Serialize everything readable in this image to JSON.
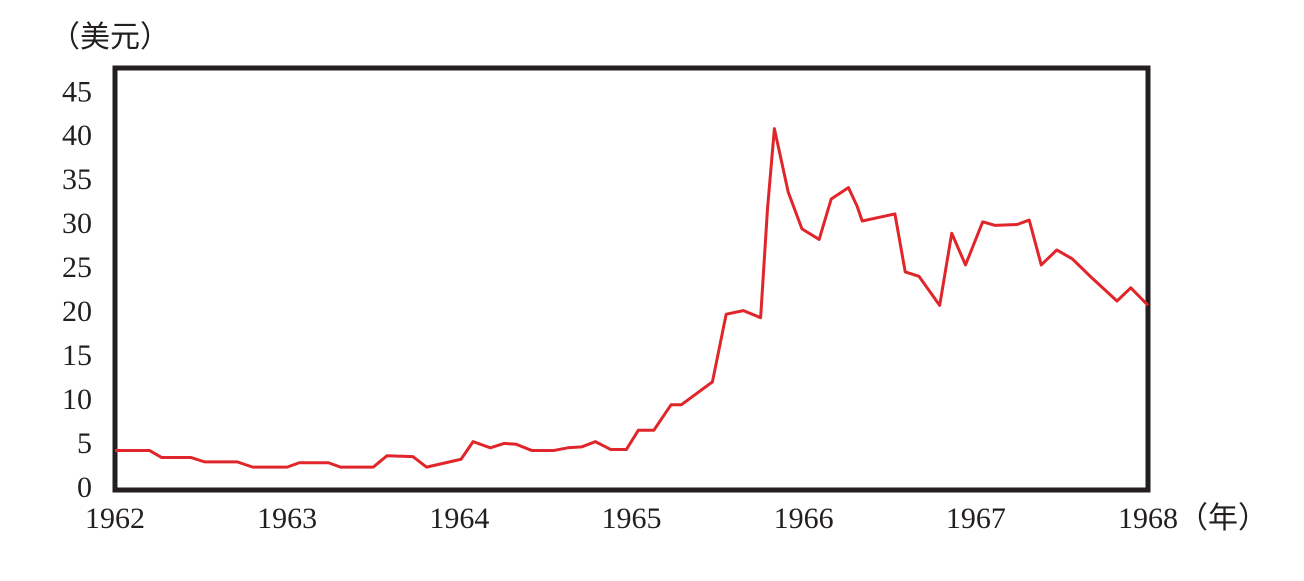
{
  "chart_data": {
    "type": "line",
    "y_label": "（美元）",
    "x_label": "（年）",
    "series": [
      {
        "color": "#e0262a",
        "x": [
          1962.0,
          1962.2,
          1962.27,
          1962.44,
          1962.52,
          1962.71,
          1962.8,
          1963.0,
          1963.07,
          1963.24,
          1963.31,
          1963.5,
          1963.58,
          1963.73,
          1963.81,
          1964.01,
          1964.08,
          1964.18,
          1964.26,
          1964.33,
          1964.42,
          1964.55,
          1964.63,
          1964.71,
          1964.79,
          1964.88,
          1964.97,
          1965.04,
          1965.13,
          1965.23,
          1965.29,
          1965.47,
          1965.55,
          1965.65,
          1965.75,
          1965.79,
          1965.83,
          1965.91,
          1965.99,
          1966.09,
          1966.16,
          1966.26,
          1966.31,
          1966.34,
          1966.53,
          1966.59,
          1966.67,
          1966.79,
          1966.86,
          1966.94,
          1967.04,
          1967.11,
          1967.24,
          1967.31,
          1967.38,
          1967.47,
          1967.56,
          1967.67,
          1967.82,
          1967.9,
          1968.0
        ],
        "values": [
          4.5,
          4.5,
          3.7,
          3.7,
          3.2,
          3.2,
          2.6,
          2.6,
          3.1,
          3.1,
          2.6,
          2.6,
          3.9,
          3.8,
          2.6,
          3.5,
          5.5,
          4.8,
          5.3,
          5.2,
          4.5,
          4.5,
          4.8,
          4.9,
          5.5,
          4.6,
          4.6,
          6.8,
          6.8,
          9.7,
          9.7,
          12.3,
          20.0,
          20.4,
          19.6,
          32.0,
          41.1,
          33.9,
          29.7,
          28.5,
          33.1,
          34.4,
          32.3,
          30.6,
          31.4,
          24.8,
          24.3,
          21.0,
          29.2,
          25.6,
          30.5,
          30.1,
          30.2,
          30.7,
          25.6,
          27.3,
          26.3,
          24.2,
          21.5,
          23.0,
          21.0
        ]
      }
    ],
    "xlim": [
      1962,
      1968
    ],
    "xticks": [
      1962,
      1963,
      1964,
      1965,
      1966,
      1967,
      1968
    ],
    "ylim": [
      0,
      48
    ],
    "yticks": [
      0,
      5,
      10,
      15,
      20,
      25,
      30,
      35,
      40,
      45
    ]
  }
}
